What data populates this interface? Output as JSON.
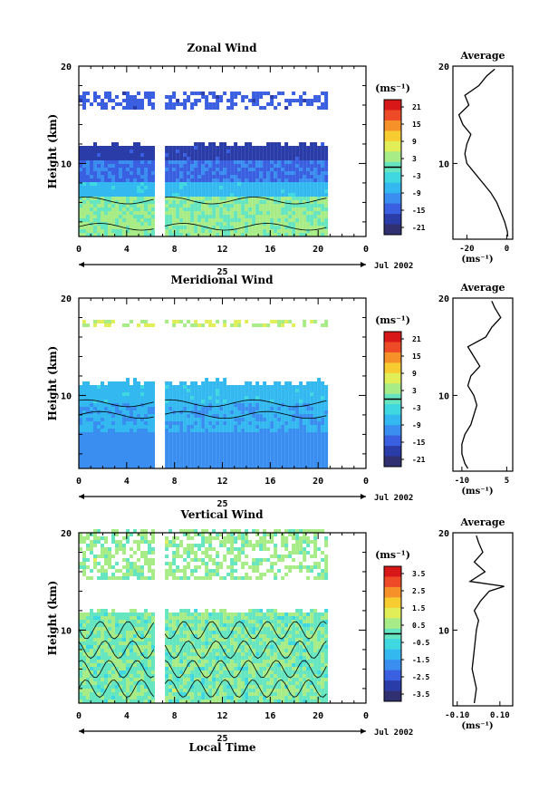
{
  "page": {
    "x_axis_label": "Local Time",
    "units": "(ms⁻¹)"
  },
  "chart_data": [
    {
      "type": "heatmap",
      "title": "Zonal Wind",
      "ylabel": "Height (km)",
      "xlabel": "",
      "x_ticks": [
        "0",
        "4",
        "8",
        "12",
        "16",
        "20",
        "0"
      ],
      "day_label": "25",
      "date_label": "Jul 2002",
      "xlim": [
        0,
        24
      ],
      "ylim": [
        2.5,
        20
      ],
      "y_ticks": [
        "20",
        "10"
      ],
      "colorbar": {
        "units": "(ms⁻¹)",
        "ticks": [
          "21",
          "15",
          "9",
          "3",
          "-3",
          "-9",
          "-15",
          "-21"
        ],
        "range": [
          -24,
          24
        ]
      },
      "data_coverage": {
        "x_segments": [
          [
            0,
            6.3
          ],
          [
            7.2,
            20.8
          ]
        ],
        "main_top_km": 11.8,
        "upper_layer_km": [
          15.5,
          17.2
        ]
      },
      "average_profile": {
        "title": "Average",
        "xlabel": "(ms⁻¹)",
        "x_ticks": [
          "-20",
          "0"
        ],
        "y_ticks": [
          "20",
          "10"
        ],
        "xlim": [
          -27,
          3
        ],
        "height_km": [
          2.5,
          3,
          4,
          5,
          6,
          7,
          8,
          9,
          10,
          11,
          12,
          13,
          14,
          15,
          16,
          17,
          18,
          19,
          19.7
        ],
        "value_ms": [
          0.5,
          0.3,
          -1.0,
          -3.0,
          -5.0,
          -8.0,
          -12.0,
          -16.0,
          -20.0,
          -21.0,
          -20.0,
          -18.0,
          -22.0,
          -24.0,
          -19.0,
          -21.0,
          -14.0,
          -10.0,
          -6.0
        ]
      }
    },
    {
      "type": "heatmap",
      "title": "Meridional Wind",
      "ylabel": "Height (km)",
      "xlabel": "",
      "x_ticks": [
        "0",
        "4",
        "8",
        "12",
        "16",
        "20",
        "0"
      ],
      "day_label": "25",
      "date_label": "Jul 2002",
      "xlim": [
        0,
        24
      ],
      "ylim": [
        2.5,
        20
      ],
      "y_ticks": [
        "20",
        "10"
      ],
      "colorbar": {
        "units": "(ms⁻¹)",
        "ticks": [
          "21",
          "15",
          "9",
          "3",
          "-3",
          "-9",
          "-15",
          "-21"
        ],
        "range": [
          -24,
          24
        ]
      },
      "data_coverage": {
        "x_segments": [
          [
            0,
            6.3
          ],
          [
            7.2,
            20.8
          ]
        ],
        "main_top_km": 11.2,
        "upper_layer_km": [
          17.0,
          17.6
        ]
      },
      "average_profile": {
        "title": "Average",
        "xlabel": "(ms⁻¹)",
        "x_ticks": [
          "-10",
          "5"
        ],
        "y_ticks": [
          "20",
          "10"
        ],
        "xlim": [
          -13,
          7
        ],
        "height_km": [
          2.5,
          3,
          4,
          5,
          6,
          7,
          8,
          9,
          10,
          11,
          12,
          13,
          14,
          15,
          16,
          17,
          18,
          19,
          19.7
        ],
        "value_ms": [
          -8.0,
          -9.0,
          -10.0,
          -10.0,
          -9.0,
          -7.0,
          -6.0,
          -5.0,
          -6.0,
          -8.0,
          -7.0,
          -4.0,
          -6.0,
          -8.0,
          -2.0,
          0.0,
          3.0,
          1.0,
          0.0
        ]
      }
    },
    {
      "type": "heatmap",
      "title": "Vertical Wind",
      "ylabel": "Height (km)",
      "xlabel": "Local Time",
      "x_ticks": [
        "0",
        "4",
        "8",
        "12",
        "16",
        "20",
        "0"
      ],
      "day_label": "25",
      "date_label": "Jul 2002",
      "xlim": [
        0,
        24
      ],
      "ylim": [
        2.5,
        20
      ],
      "y_ticks": [
        "20",
        "10"
      ],
      "colorbar": {
        "units": "(ms⁻¹)",
        "ticks": [
          "3.5",
          "2.5",
          "1.5",
          "0.5",
          "-0.5",
          "-1.5",
          "-2.5",
          "-3.5"
        ],
        "range": [
          -4,
          4
        ]
      },
      "data_coverage": {
        "x_segments": [
          [
            0,
            6.3
          ],
          [
            7.2,
            20.8
          ]
        ],
        "main_top_km": 11.8,
        "upper_layer_km": [
          15.0,
          20.0
        ]
      },
      "average_profile": {
        "title": "Average",
        "xlabel": "(ms⁻¹)",
        "x_ticks": [
          "-0.10",
          "0.10"
        ],
        "y_ticks": [
          "20",
          "10"
        ],
        "xlim": [
          -0.12,
          0.16
        ],
        "height_km": [
          2.5,
          4,
          6,
          8,
          10,
          11,
          12,
          13,
          14,
          14.5,
          15,
          16,
          17,
          18,
          19,
          19.7
        ],
        "value_ms": [
          -0.02,
          -0.01,
          -0.03,
          -0.02,
          -0.01,
          0.0,
          -0.02,
          0.01,
          0.05,
          0.12,
          -0.04,
          0.03,
          -0.02,
          0.02,
          0.0,
          -0.01
        ]
      }
    }
  ]
}
